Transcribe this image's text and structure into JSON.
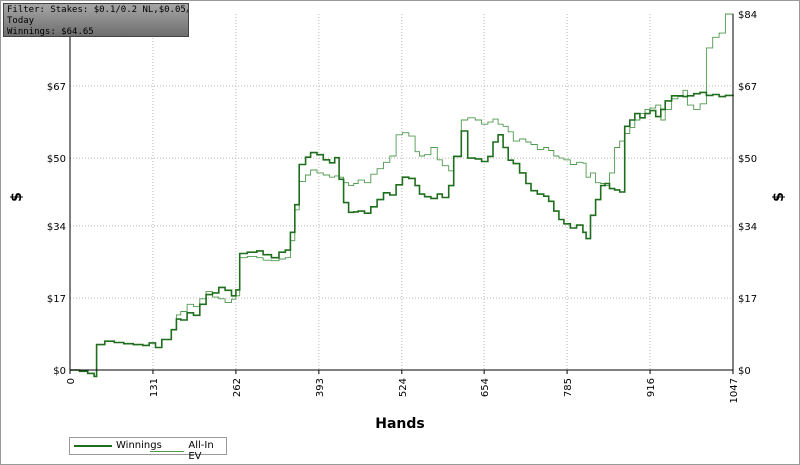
{
  "filter_box": {
    "line1": "Filter: Stakes: $0.1/0.2 NL,$0.05/0.1 NL",
    "line2": "Today",
    "line3": "Winnings: $64.65"
  },
  "colors": {
    "winnings": "#1e6e1e",
    "allin_ev": "#4f9a4f",
    "grid": "#b8b8b8",
    "axis": "#000000"
  },
  "chart_data": {
    "type": "line",
    "title": "",
    "xlabel": "Hands",
    "ylabel": "$",
    "xlim": [
      0,
      1047
    ],
    "ylim": [
      0,
      84
    ],
    "x_ticks": [
      "0",
      "131",
      "262",
      "393",
      "524",
      "654",
      "785",
      "916",
      "1047"
    ],
    "y_ticks": [
      "$0",
      "$17",
      "$34",
      "$50",
      "$67",
      "$84"
    ],
    "y_tick_values": [
      0,
      17,
      34,
      50,
      67,
      84
    ],
    "grid": true,
    "legend_position": "bottom-left",
    "series": [
      {
        "name": "Winnings",
        "points": [
          [
            0,
            0
          ],
          [
            15,
            -0.3
          ],
          [
            28,
            -0.8
          ],
          [
            38,
            -1.5
          ],
          [
            42,
            6
          ],
          [
            55,
            6.8
          ],
          [
            70,
            6.5
          ],
          [
            85,
            6.2
          ],
          [
            100,
            6.0
          ],
          [
            115,
            5.8
          ],
          [
            125,
            6.4
          ],
          [
            135,
            5.3
          ],
          [
            145,
            7.2
          ],
          [
            160,
            9.5
          ],
          [
            168,
            12.0
          ],
          [
            175,
            11.8
          ],
          [
            185,
            13.5
          ],
          [
            195,
            12.9
          ],
          [
            205,
            15.5
          ],
          [
            215,
            17.8
          ],
          [
            225,
            18.2
          ],
          [
            235,
            19.5
          ],
          [
            245,
            18.8
          ],
          [
            255,
            17.5
          ],
          [
            262,
            18.9
          ],
          [
            268,
            27.5
          ],
          [
            280,
            27.8
          ],
          [
            295,
            28.1
          ],
          [
            305,
            27.2
          ],
          [
            318,
            26.5
          ],
          [
            330,
            27.8
          ],
          [
            340,
            28.3
          ],
          [
            348,
            32.5
          ],
          [
            355,
            39.0
          ],
          [
            362,
            48.5
          ],
          [
            372,
            50.2
          ],
          [
            380,
            51.3
          ],
          [
            390,
            50.8
          ],
          [
            400,
            49.6
          ],
          [
            410,
            48.9
          ],
          [
            418,
            50.1
          ],
          [
            425,
            45.0
          ],
          [
            432,
            39.5
          ],
          [
            440,
            37.2
          ],
          [
            448,
            37.3
          ],
          [
            455,
            37.5
          ],
          [
            465,
            37.0
          ],
          [
            475,
            38.5
          ],
          [
            485,
            40.2
          ],
          [
            495,
            41.8
          ],
          [
            505,
            41.3
          ],
          [
            515,
            43.7
          ],
          [
            525,
            45.5
          ],
          [
            535,
            45.2
          ],
          [
            545,
            43.5
          ],
          [
            552,
            41.5
          ],
          [
            560,
            40.9
          ],
          [
            570,
            40.5
          ],
          [
            580,
            41.5
          ],
          [
            588,
            40.7
          ],
          [
            598,
            43.5
          ],
          [
            606,
            50.4
          ],
          [
            618,
            56.4
          ],
          [
            628,
            50.0
          ],
          [
            640,
            49.8
          ],
          [
            650,
            49.2
          ],
          [
            660,
            50.4
          ],
          [
            668,
            53.8
          ],
          [
            676,
            55.5
          ],
          [
            684,
            52.5
          ],
          [
            692,
            49.5
          ],
          [
            700,
            48.7
          ],
          [
            710,
            46.5
          ],
          [
            720,
            44.0
          ],
          [
            728,
            42.3
          ],
          [
            738,
            41.5
          ],
          [
            748,
            41.0
          ],
          [
            756,
            39.8
          ],
          [
            764,
            37.5
          ],
          [
            772,
            35.5
          ],
          [
            780,
            34.5
          ],
          [
            790,
            33.5
          ],
          [
            800,
            34.2
          ],
          [
            810,
            32.5
          ],
          [
            815,
            31.0
          ],
          [
            822,
            36.5
          ],
          [
            830,
            40.2
          ],
          [
            838,
            43.5
          ],
          [
            845,
            44.0
          ],
          [
            852,
            42.8
          ],
          [
            860,
            42.5
          ],
          [
            868,
            42.0
          ],
          [
            876,
            57.5
          ],
          [
            884,
            59.0
          ],
          [
            892,
            60.5
          ],
          [
            900,
            59.5
          ],
          [
            908,
            60.5
          ],
          [
            916,
            61.2
          ],
          [
            925,
            59.8
          ],
          [
            933,
            61.5
          ],
          [
            940,
            63.5
          ],
          [
            950,
            64.7
          ],
          [
            960,
            64.7
          ],
          [
            968,
            64.5
          ],
          [
            975,
            64.7
          ],
          [
            985,
            65.2
          ],
          [
            995,
            65.5
          ],
          [
            1005,
            64.8
          ],
          [
            1015,
            65.0
          ],
          [
            1025,
            64.5
          ],
          [
            1035,
            64.8
          ],
          [
            1047,
            64.65
          ]
        ]
      },
      {
        "name": "All-In EV",
        "points": [
          [
            0,
            0
          ],
          [
            15,
            -0.3
          ],
          [
            28,
            -0.8
          ],
          [
            38,
            -1.5
          ],
          [
            42,
            6
          ],
          [
            55,
            6.8
          ],
          [
            70,
            6.5
          ],
          [
            85,
            6.2
          ],
          [
            100,
            6.0
          ],
          [
            115,
            5.8
          ],
          [
            125,
            6.4
          ],
          [
            135,
            5.3
          ],
          [
            145,
            7.2
          ],
          [
            160,
            9.5
          ],
          [
            168,
            13.0
          ],
          [
            175,
            13.8
          ],
          [
            185,
            15.5
          ],
          [
            195,
            15.0
          ],
          [
            205,
            16.8
          ],
          [
            215,
            18.5
          ],
          [
            225,
            17.2
          ],
          [
            235,
            16.8
          ],
          [
            245,
            15.9
          ],
          [
            255,
            16.7
          ],
          [
            262,
            17.5
          ],
          [
            268,
            26.5
          ],
          [
            280,
            26.8
          ],
          [
            295,
            26.5
          ],
          [
            305,
            25.9
          ],
          [
            318,
            25.8
          ],
          [
            330,
            26.2
          ],
          [
            340,
            26.5
          ],
          [
            348,
            30.5
          ],
          [
            355,
            37.8
          ],
          [
            362,
            44.5
          ],
          [
            372,
            46.0
          ],
          [
            380,
            47.2
          ],
          [
            390,
            46.5
          ],
          [
            400,
            46.0
          ],
          [
            410,
            45.5
          ],
          [
            418,
            45.8
          ],
          [
            425,
            45.5
          ],
          [
            432,
            44.2
          ],
          [
            440,
            43.5
          ],
          [
            448,
            44.0
          ],
          [
            455,
            44.8
          ],
          [
            465,
            44.2
          ],
          [
            475,
            46.2
          ],
          [
            485,
            47.5
          ],
          [
            495,
            49.0
          ],
          [
            505,
            50.5
          ],
          [
            515,
            55.5
          ],
          [
            525,
            56.0
          ],
          [
            535,
            55.2
          ],
          [
            545,
            51.5
          ],
          [
            552,
            50.5
          ],
          [
            560,
            50.8
          ],
          [
            570,
            52.5
          ],
          [
            580,
            49.6
          ],
          [
            588,
            48.2
          ],
          [
            598,
            47.0
          ],
          [
            606,
            50.5
          ],
          [
            618,
            59.0
          ],
          [
            628,
            59.5
          ],
          [
            640,
            59.0
          ],
          [
            650,
            58.0
          ],
          [
            660,
            58.5
          ],
          [
            668,
            59.2
          ],
          [
            676,
            58.0
          ],
          [
            684,
            57.5
          ],
          [
            692,
            56.2
          ],
          [
            700,
            54.0
          ],
          [
            710,
            54.5
          ],
          [
            720,
            53.8
          ],
          [
            728,
            53.2
          ],
          [
            738,
            52.0
          ],
          [
            748,
            52.5
          ],
          [
            756,
            51.8
          ],
          [
            764,
            50.5
          ],
          [
            772,
            50.0
          ],
          [
            780,
            49.6
          ],
          [
            790,
            48.5
          ],
          [
            800,
            49.0
          ],
          [
            810,
            48.8
          ],
          [
            815,
            45.5
          ],
          [
            822,
            46.5
          ],
          [
            830,
            44.2
          ],
          [
            838,
            44.0
          ],
          [
            845,
            43.5
          ],
          [
            852,
            46.5
          ],
          [
            860,
            52.5
          ],
          [
            868,
            54.0
          ],
          [
            876,
            55.8
          ],
          [
            884,
            57.2
          ],
          [
            892,
            59.0
          ],
          [
            900,
            60.5
          ],
          [
            908,
            61.5
          ],
          [
            916,
            61.8
          ],
          [
            925,
            62.5
          ],
          [
            933,
            59.0
          ],
          [
            940,
            61.5
          ],
          [
            950,
            64.0
          ],
          [
            960,
            64.5
          ],
          [
            968,
            66.0
          ],
          [
            975,
            62.5
          ],
          [
            985,
            61.5
          ],
          [
            995,
            62.8
          ],
          [
            1005,
            76.0
          ],
          [
            1015,
            78.5
          ],
          [
            1025,
            79.5
          ],
          [
            1035,
            84.0
          ],
          [
            1047,
            83.5
          ]
        ]
      }
    ]
  },
  "legend": {
    "winnings_label": "Winnings",
    "allin_label": "All-In EV"
  }
}
